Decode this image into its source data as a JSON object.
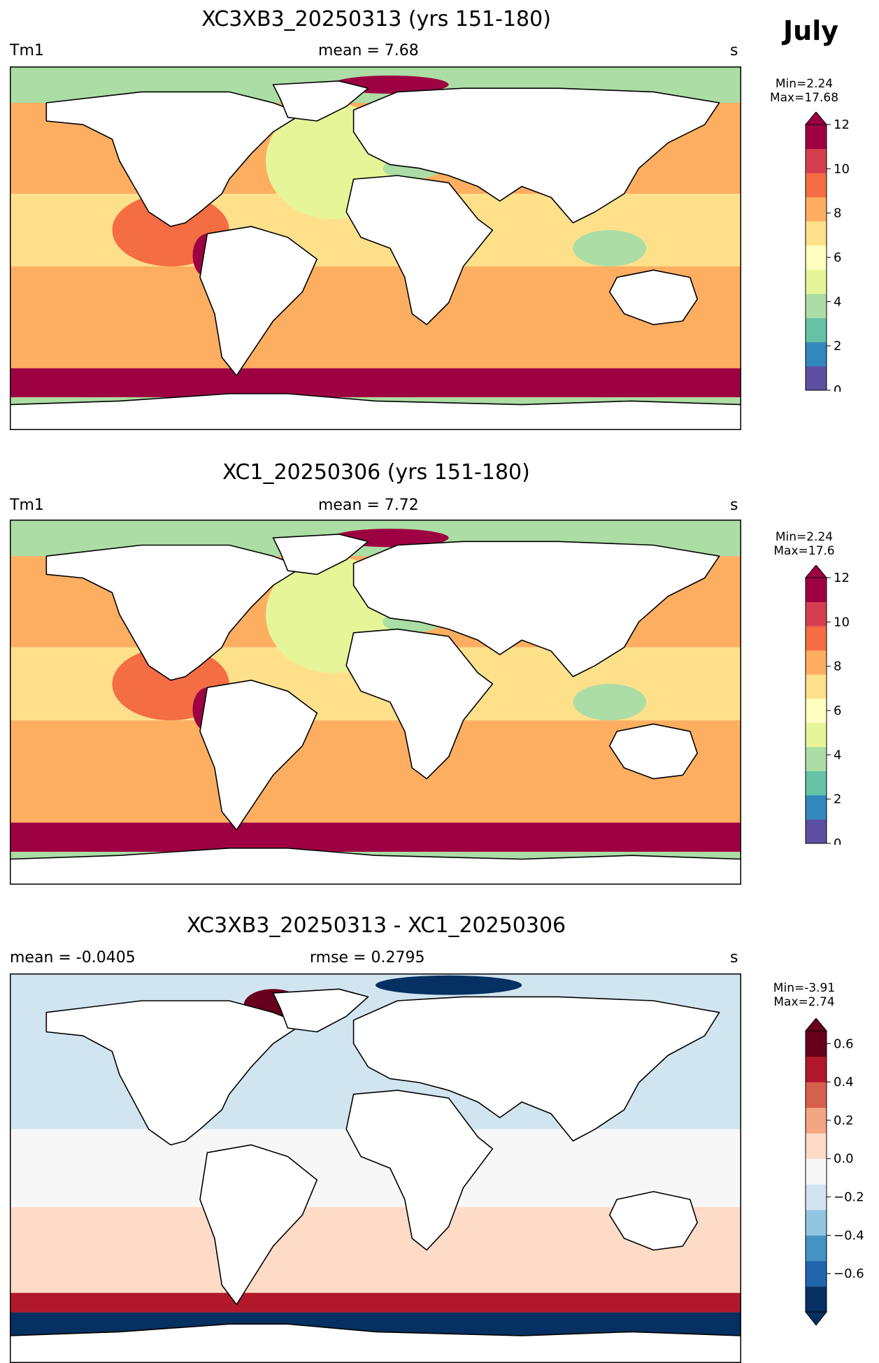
{
  "month": "July",
  "panels": [
    {
      "title": "XC3XB3_20250313 (yrs 151-180)",
      "left": "Tm1",
      "center": "mean = 7.68",
      "units": "s",
      "min_label": "Min=2.24",
      "max_label": "Max=17.68",
      "palette": "spectral",
      "colorbar": {
        "ticks": [
          "0",
          "2",
          "4",
          "6",
          "8",
          "10",
          "12"
        ],
        "colors": [
          "#5e4fa2",
          "#3288bd",
          "#66c2a5",
          "#abdda4",
          "#e6f598",
          "#ffffbf",
          "#fee08b",
          "#fdae61",
          "#f46d43",
          "#d53e4f",
          "#9e0142"
        ],
        "extend": "max"
      },
      "map_data": {
        "arctic": 4,
        "north_atlantic": 5,
        "north_pacific": 8,
        "north_pacific_east": 9,
        "peru_coast": 11,
        "tropics": 7,
        "south_midlat": 8,
        "southern_ocean_band": 12,
        "antarctic_coast": 4,
        "mediterranean": 4,
        "indonesia": 4,
        "norwegian_sea": 12
      }
    },
    {
      "title": "XC1_20250306 (yrs 151-180)",
      "left": "Tm1",
      "center": "mean = 7.72",
      "units": "s",
      "min_label": "Min=2.24",
      "max_label": "Max=17.6",
      "palette": "spectral",
      "colorbar": {
        "ticks": [
          "0",
          "2",
          "4",
          "6",
          "8",
          "10",
          "12"
        ],
        "colors": [
          "#5e4fa2",
          "#3288bd",
          "#66c2a5",
          "#abdda4",
          "#e6f598",
          "#ffffbf",
          "#fee08b",
          "#fdae61",
          "#f46d43",
          "#d53e4f",
          "#9e0142"
        ],
        "extend": "max"
      },
      "map_data": {
        "arctic": 4,
        "north_atlantic": 5,
        "north_pacific": 8,
        "north_pacific_east": 9,
        "peru_coast": 11,
        "tropics": 7,
        "south_midlat": 8,
        "southern_ocean_band": 12,
        "antarctic_coast": 4,
        "mediterranean": 4,
        "indonesia": 4,
        "norwegian_sea": 12
      }
    },
    {
      "title": "XC3XB3_20250313 - XC1_20250306",
      "left": "mean = -0.0405",
      "center": "rmse = 0.2795",
      "units": "s",
      "min_label": "Min=-3.91",
      "max_label": "Max=2.74",
      "palette": "diverging",
      "colorbar": {
        "ticks": [
          "−0.6",
          "−0.4",
          "−0.2",
          "0.0",
          "0.2",
          "0.4",
          "0.6"
        ],
        "colors": [
          "#053061",
          "#2166ac",
          "#4393c3",
          "#92c5de",
          "#d1e5f0",
          "#f7f7f7",
          "#fddbc7",
          "#f4a582",
          "#d6604d",
          "#b2182b",
          "#67001f"
        ],
        "extend": "both"
      },
      "map_data": {
        "north_pacific": -0.1,
        "tropics": 0.05,
        "south_midlat": 0.1,
        "southern_ocean_band": 0.5,
        "antarctic_coast": -0.7,
        "baffin": 0.7,
        "barents": -0.7
      }
    }
  ]
}
